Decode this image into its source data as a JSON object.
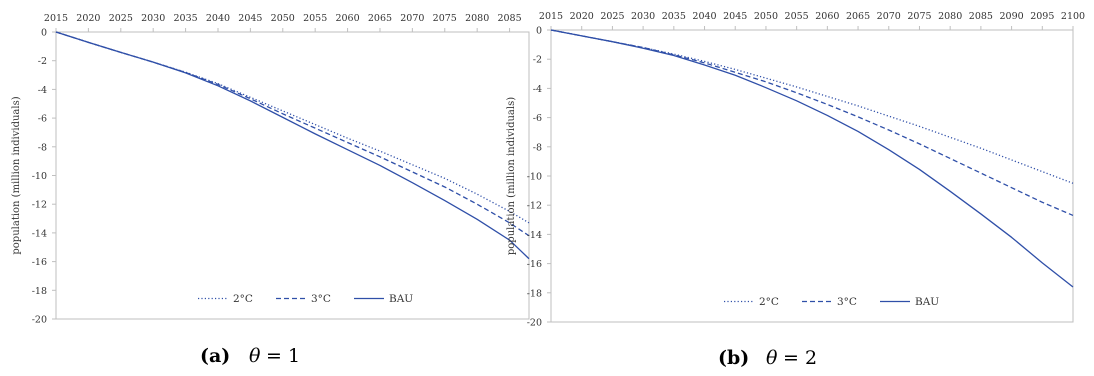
{
  "panels": [
    {
      "chart_data": {
        "type": "line",
        "x": [
          2015,
          2020,
          2025,
          2030,
          2035,
          2040,
          2045,
          2050,
          2055,
          2060,
          2065,
          2070,
          2075,
          2080,
          2085,
          2088
        ],
        "xticks": [
          "2015",
          "2020",
          "2025",
          "2030",
          "2035",
          "2040",
          "2045",
          "2050",
          "2055",
          "2060",
          "2065",
          "2070",
          "2075",
          "2080",
          "2085"
        ],
        "xlim": [
          2015,
          2088
        ],
        "ylim": [
          -20,
          0
        ],
        "yticks": [
          "0",
          "-2",
          "-4",
          "-6",
          "-8",
          "-10",
          "-12",
          "-14",
          "-16",
          "-18",
          "-20"
        ],
        "ylabel": "population (million individuals)",
        "x_axis_position": "top",
        "grid": false,
        "legend_position": "bottom-center",
        "series": [
          {
            "name": "2°C",
            "style": "dotted",
            "values": [
              0,
              -0.72,
              -1.42,
              -2.1,
              -2.8,
              -3.6,
              -4.55,
              -5.5,
              -6.45,
              -7.4,
              -8.3,
              -9.25,
              -10.2,
              -11.3,
              -12.5,
              -13.3
            ]
          },
          {
            "name": "3°C",
            "style": "dashed",
            "values": [
              0,
              -0.72,
              -1.42,
              -2.1,
              -2.82,
              -3.65,
              -4.65,
              -5.7,
              -6.7,
              -7.7,
              -8.7,
              -9.75,
              -10.8,
              -12.0,
              -13.3,
              -14.2
            ]
          },
          {
            "name": "BAU",
            "style": "solid",
            "values": [
              0,
              -0.72,
              -1.42,
              -2.1,
              -2.85,
              -3.75,
              -4.8,
              -5.95,
              -7.1,
              -8.2,
              -9.3,
              -10.5,
              -11.75,
              -13.05,
              -14.5,
              -15.8
            ]
          }
        ]
      },
      "caption_tag": "(a)",
      "caption_math": "θ",
      "caption_eq": "= 1"
    },
    {
      "chart_data": {
        "type": "line",
        "x": [
          2015,
          2020,
          2025,
          2030,
          2035,
          2040,
          2045,
          2050,
          2055,
          2060,
          2065,
          2070,
          2075,
          2080,
          2085,
          2090,
          2095,
          2100
        ],
        "xticks": [
          "2015",
          "2020",
          "2025",
          "2030",
          "2035",
          "2040",
          "2045",
          "2050",
          "2055",
          "2060",
          "2065",
          "2070",
          "2075",
          "2080",
          "2085",
          "2090",
          "2095",
          "2100"
        ],
        "xlim": [
          2015,
          2100
        ],
        "ylim": [
          -20,
          0
        ],
        "yticks": [
          "0",
          "-2",
          "-4",
          "-6",
          "-8",
          "-10",
          "-12",
          "-14",
          "-16",
          "-18",
          "-20"
        ],
        "ylabel": "population (million individuals)",
        "x_axis_position": "top",
        "grid": false,
        "legend_position": "bottom-center",
        "series": [
          {
            "name": "2°C",
            "style": "dotted",
            "values": [
              0,
              -0.4,
              -0.8,
              -1.2,
              -1.65,
              -2.15,
              -2.7,
              -3.3,
              -3.9,
              -4.55,
              -5.2,
              -5.9,
              -6.6,
              -7.35,
              -8.1,
              -8.9,
              -9.7,
              -10.5
            ]
          },
          {
            "name": "3°C",
            "style": "dashed",
            "values": [
              0,
              -0.4,
              -0.8,
              -1.2,
              -1.7,
              -2.25,
              -2.9,
              -3.55,
              -4.3,
              -5.1,
              -5.95,
              -6.85,
              -7.8,
              -8.8,
              -9.8,
              -10.8,
              -11.8,
              -12.7
            ]
          },
          {
            "name": "BAU",
            "style": "solid",
            "values": [
              0,
              -0.4,
              -0.8,
              -1.25,
              -1.75,
              -2.4,
              -3.1,
              -3.95,
              -4.85,
              -5.85,
              -6.95,
              -8.2,
              -9.55,
              -11.05,
              -12.6,
              -14.2,
              -15.95,
              -17.6
            ]
          }
        ]
      },
      "caption_tag": "(b)",
      "caption_math": "θ",
      "caption_eq": "= 2"
    }
  ],
  "colors": {
    "line": "#2f4fa8",
    "axis": "#bfbfbf",
    "text": "#333333"
  }
}
